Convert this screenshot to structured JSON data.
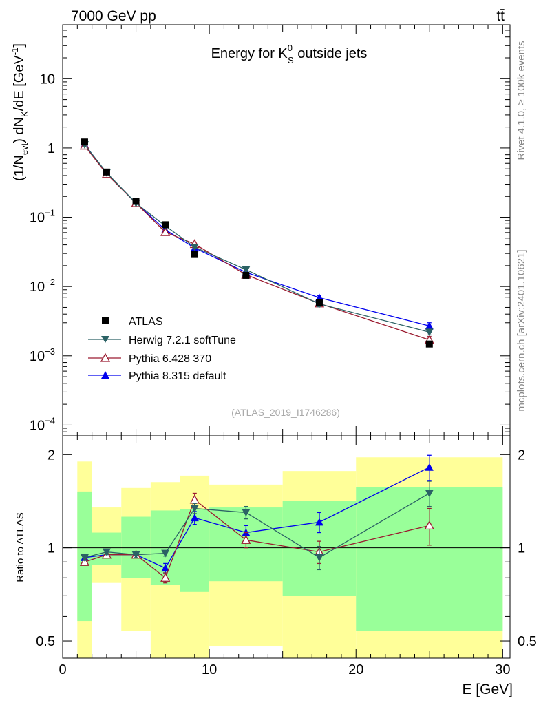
{
  "header": {
    "left": "7000 GeV pp",
    "right": "tt̄"
  },
  "side_labels": {
    "rivet": "Rivet 4.1.0, ≥ 100k events",
    "mcplots": "mcplots.cern.ch [arXiv:2401.10621]"
  },
  "chart_data": [
    {
      "type": "line",
      "scale": "log",
      "title_main": "Energy for K",
      "title_sup": "0",
      "title_sub": "S",
      "title_rest": " outside jets",
      "ylabel": "(1/N",
      "ylabel_sub1": "evt",
      "ylabel_mid": ") dN",
      "ylabel_sub2": "K",
      "ylabel_end": "/dE [GeV",
      "ylabel_sup": "-1",
      "ylabel_close": "]",
      "ylim": [
        7e-05,
        60
      ],
      "xlim": [
        0,
        30.5
      ],
      "yticks": [
        {
          "value": 10,
          "base": "10",
          "exp": ""
        },
        {
          "value": 1,
          "base": "1",
          "exp": ""
        },
        {
          "value": 0.1,
          "base": "10",
          "exp": "−1"
        },
        {
          "value": 0.01,
          "base": "10",
          "exp": "−2"
        },
        {
          "value": 0.001,
          "base": "10",
          "exp": "−3"
        },
        {
          "value": 0.0001,
          "base": "10",
          "exp": "−4"
        }
      ],
      "watermark": "(ATLAS_2019_I1746286)",
      "x": [
        1.5,
        3,
        5,
        7,
        9,
        12.5,
        17.5,
        25
      ],
      "series": [
        {
          "name": "ATLAS",
          "color": "#000000",
          "marker": "square",
          "values": [
            1.22,
            0.45,
            0.17,
            0.078,
            0.029,
            0.0145,
            0.0058,
            0.00148
          ],
          "errors": [
            0.06,
            0.02,
            0.008,
            0.004,
            0.0015,
            0.0007,
            0.0004,
            0.00012
          ]
        },
        {
          "name": "Herwig 7.2.1 softTune",
          "color": "#2b6265",
          "marker": "triangle-down",
          "values": [
            1.12,
            0.44,
            0.16,
            0.075,
            0.037,
            0.0175,
            0.0056,
            0.0022
          ],
          "errors": [
            0,
            0,
            0,
            0,
            0,
            0.0008,
            0.0005,
            0.0002
          ]
        },
        {
          "name": "Pythia 6.428 370",
          "color": "#9b1b30",
          "marker": "triangle-open",
          "values": [
            1.08,
            0.42,
            0.16,
            0.061,
            0.041,
            0.0148,
            0.0057,
            0.0017
          ],
          "errors": [
            0,
            0,
            0,
            0,
            0,
            0.0007,
            0.0005,
            0.0002
          ]
        },
        {
          "name": "Pythia 8.315 default",
          "color": "#0000ee",
          "marker": "triangle-up",
          "values": [
            1.13,
            0.43,
            0.16,
            0.066,
            0.036,
            0.016,
            0.0069,
            0.0027
          ],
          "errors": [
            0,
            0,
            0,
            0,
            0,
            0.0007,
            0.0005,
            0.0003
          ]
        }
      ]
    },
    {
      "type": "line",
      "scale": "log",
      "ylabel": "Ratio to ATLAS",
      "xlabel": "E [GeV]",
      "ylim": [
        0.44,
        2.3
      ],
      "xlim": [
        0,
        30.5
      ],
      "yticks": [
        {
          "value": 2,
          "label": "2"
        },
        {
          "value": 1,
          "label": "1"
        },
        {
          "value": 0.5,
          "label": "0.5"
        }
      ],
      "xticks": [
        {
          "value": 0,
          "label": "0"
        },
        {
          "value": 10,
          "label": "10"
        },
        {
          "value": 20,
          "label": "20"
        },
        {
          "value": 30,
          "label": "30"
        }
      ],
      "bands": [
        {
          "x0": 1,
          "x1": 2,
          "g_lo": 0.58,
          "g_hi": 1.52,
          "y_lo": 0.4,
          "y_hi": 1.9
        },
        {
          "x0": 2,
          "x1": 4,
          "g_lo": 0.88,
          "g_hi": 1.12,
          "y_lo": 0.77,
          "y_hi": 1.35
        },
        {
          "x0": 4,
          "x1": 6,
          "g_lo": 0.8,
          "g_hi": 1.26,
          "y_lo": 0.54,
          "y_hi": 1.56
        },
        {
          "x0": 6,
          "x1": 8,
          "g_lo": 0.76,
          "g_hi": 1.32,
          "y_lo": 0.43,
          "y_hi": 1.63
        },
        {
          "x0": 8,
          "x1": 10,
          "g_lo": 0.72,
          "g_hi": 1.33,
          "y_lo": 0.4,
          "y_hi": 1.71
        },
        {
          "x0": 10,
          "x1": 15,
          "g_lo": 0.78,
          "g_hi": 1.35,
          "y_lo": 0.48,
          "y_hi": 1.6
        },
        {
          "x0": 15,
          "x1": 20,
          "g_lo": 0.7,
          "g_hi": 1.42,
          "y_lo": 0.4,
          "y_hi": 1.77
        },
        {
          "x0": 20,
          "x1": 30,
          "g_lo": 0.54,
          "g_hi": 1.57,
          "y_lo": 0.4,
          "y_hi": 1.96
        }
      ],
      "x": [
        1.5,
        3,
        5,
        7,
        9,
        12.5,
        17.5,
        25
      ],
      "series": [
        {
          "name": "Herwig 7.2.1 softTune",
          "color": "#2b6265",
          "marker": "triangle-down",
          "values": [
            0.93,
            0.97,
            0.95,
            0.96,
            1.34,
            1.3,
            0.93,
            1.5
          ],
          "errors": [
            0.02,
            0.02,
            0.02,
            0.02,
            0.05,
            0.06,
            0.08,
            0.14
          ]
        },
        {
          "name": "Pythia 6.428 370",
          "color": "#9b1b30",
          "marker": "triangle-open",
          "values": [
            0.9,
            0.95,
            0.95,
            0.8,
            1.43,
            1.06,
            0.97,
            1.18
          ],
          "errors": [
            0.02,
            0.02,
            0.02,
            0.03,
            0.07,
            0.06,
            0.08,
            0.16
          ]
        },
        {
          "name": "Pythia 8.315 default",
          "color": "#0000ee",
          "marker": "triangle-up",
          "values": [
            0.93,
            0.95,
            0.95,
            0.86,
            1.25,
            1.12,
            1.21,
            1.82
          ],
          "errors": [
            0.02,
            0.02,
            0.02,
            0.03,
            0.06,
            0.06,
            0.09,
            0.17
          ]
        }
      ]
    }
  ]
}
